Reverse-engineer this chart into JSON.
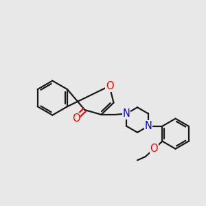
{
  "bg_color": "#e8e8e8",
  "bond_color": "#1a1a1a",
  "oxygen_color": "#ff0000",
  "nitrogen_color": "#0000ee",
  "line_width": 1.6,
  "font_size": 10.5,
  "xlim": [
    -0.5,
    9.5
  ],
  "ylim": [
    1.0,
    8.5
  ]
}
